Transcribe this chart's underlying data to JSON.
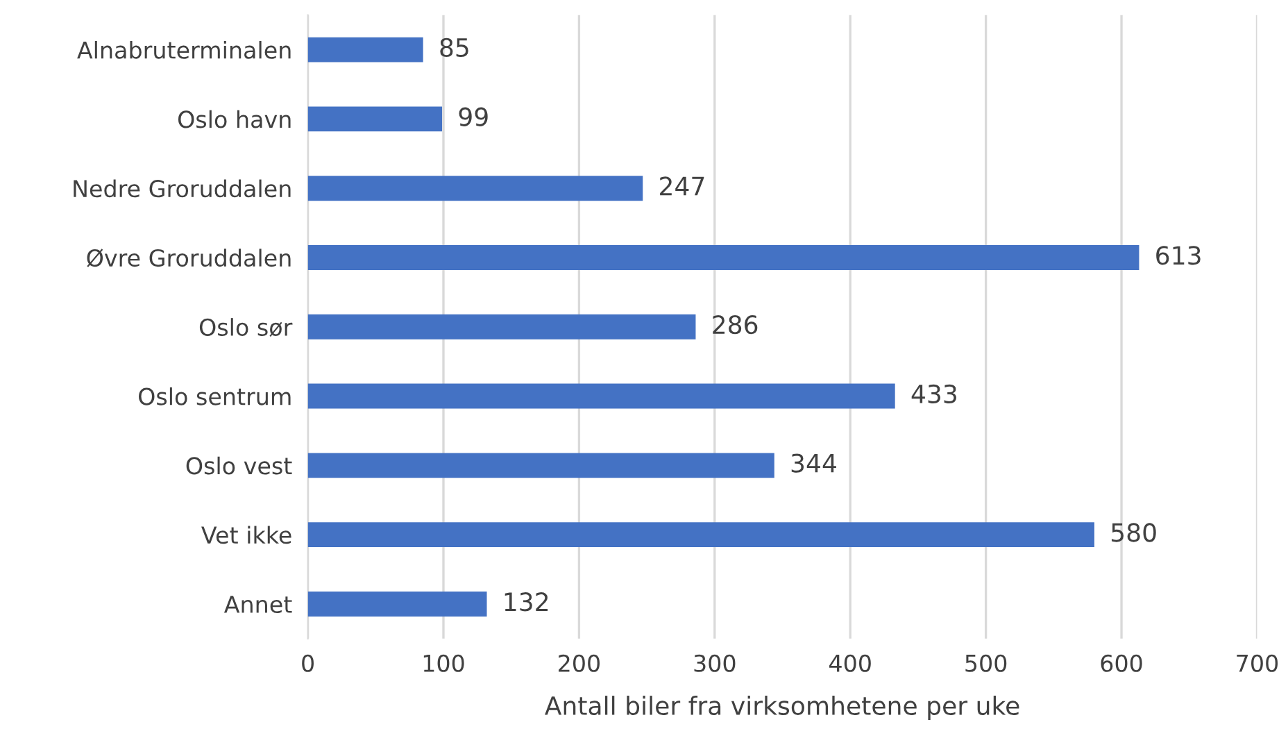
{
  "chart_data": {
    "type": "bar",
    "orientation": "horizontal",
    "xlabel": "Antall biler fra virksomhetene per uke",
    "categories": [
      "Alnabruterminalen",
      "Oslo havn",
      "Nedre Groruddalen",
      "Øvre Groruddalen",
      "Oslo sør",
      "Oslo sentrum",
      "Oslo vest",
      "Vet ikke",
      "Annet"
    ],
    "values": [
      85,
      99,
      247,
      613,
      286,
      433,
      344,
      580,
      132
    ],
    "color": "#4472c4",
    "xlim": [
      0,
      700
    ],
    "xticks": [
      0,
      100,
      200,
      300,
      400,
      500,
      600,
      700
    ],
    "grid": "x",
    "data_labels": true
  }
}
